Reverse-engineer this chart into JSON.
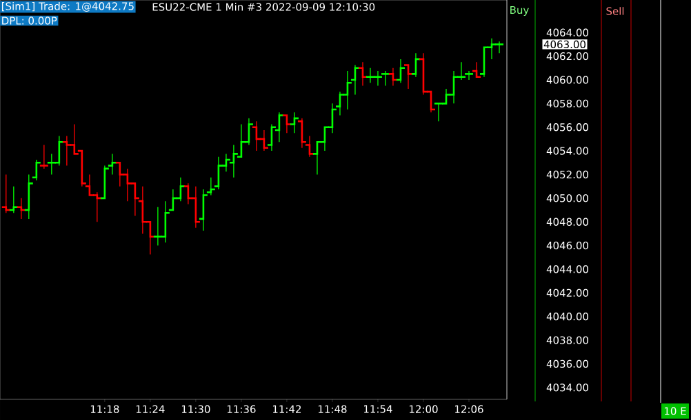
{
  "chart_data": {
    "type": "candlestick",
    "title": "ESU22-CME 1 Min #3 2022-09-09 12:10:30",
    "annotations": [
      "[Sim1] Trade: 1@4042.75",
      "DPL: 0.00P",
      "Buy",
      "Sell",
      "10 E",
      "4063.00"
    ],
    "x": [
      11.0833,
      11.1,
      11.1167,
      11.1333,
      11.15,
      11.1667,
      11.1833,
      11.2,
      11.2167,
      11.2333,
      11.25,
      11.2667,
      11.2833,
      11.3,
      11.3167,
      11.3333,
      11.35,
      11.3667,
      11.3833,
      11.4,
      11.4167,
      11.4333,
      11.45,
      11.4667,
      11.4833,
      11.5,
      11.5167,
      11.5333,
      11.55,
      11.5667,
      11.5833,
      11.6,
      11.6167,
      11.6333,
      11.65,
      11.6667,
      11.6833,
      11.7,
      11.7167,
      11.7333,
      11.75,
      11.7667,
      11.7833,
      11.8,
      11.8167,
      11.8333,
      11.85,
      11.8667,
      11.8833,
      11.9,
      11.9167,
      11.9333,
      11.95,
      11.9667,
      11.9833,
      12.0,
      12.0167,
      12.0333,
      12.05,
      12.0667,
      12.0833,
      12.1,
      12.1167,
      12.1333,
      12.15,
      12.1667
    ],
    "ohlc": [
      [
        4049.25,
        4052.0,
        4048.75,
        4049.0
      ],
      [
        4049.0,
        4051.0,
        4048.75,
        4049.25
      ],
      [
        4049.25,
        4050.0,
        4048.25,
        4049.0
      ],
      [
        4049.0,
        4052.0,
        4048.25,
        4051.25
      ],
      [
        4051.75,
        4053.25,
        4051.5,
        4053.0
      ],
      [
        4052.75,
        4054.5,
        4052.5,
        4052.75
      ],
      [
        4053.0,
        4053.75,
        4052.0,
        4053.0
      ],
      [
        4053.0,
        4055.25,
        4052.75,
        4054.75
      ],
      [
        4054.75,
        4055.25,
        4052.75,
        4054.5
      ],
      [
        4054.5,
        4056.25,
        4053.75,
        4053.75
      ],
      [
        4054.0,
        4054.0,
        4051.0,
        4051.25
      ],
      [
        4051.0,
        4052.0,
        4050.25,
        4050.25
      ],
      [
        4050.25,
        4050.5,
        4048.0,
        4050.0
      ],
      [
        4050.0,
        4052.75,
        4050.0,
        4052.5
      ],
      [
        4052.75,
        4053.75,
        4052.0,
        4053.0
      ],
      [
        4053.0,
        4053.0,
        4051.0,
        4052.0
      ],
      [
        4052.0,
        4052.5,
        4049.75,
        4051.25
      ],
      [
        4051.25,
        4051.25,
        4048.5,
        4050.0
      ],
      [
        4049.75,
        4051.0,
        4047.0,
        4048.0
      ],
      [
        4048.0,
        4048.0,
        4045.25,
        4046.75
      ],
      [
        4046.75,
        4049.25,
        4046.0,
        4046.75
      ],
      [
        4046.75,
        4049.75,
        4046.25,
        4048.75
      ],
      [
        4049.0,
        4050.75,
        4049.0,
        4050.0
      ],
      [
        4050.0,
        4051.75,
        4049.75,
        4051.0
      ],
      [
        4051.0,
        4051.25,
        4049.5,
        4050.0
      ],
      [
        4050.0,
        4051.0,
        4047.5,
        4048.0
      ],
      [
        4048.25,
        4050.75,
        4047.25,
        4050.25
      ],
      [
        4050.5,
        4051.75,
        4050.25,
        4050.75
      ],
      [
        4051.0,
        4053.5,
        4050.75,
        4052.75
      ],
      [
        4052.75,
        4053.75,
        4052.25,
        4053.25
      ],
      [
        4053.0,
        4054.5,
        4051.75,
        4053.75
      ],
      [
        4053.5,
        4056.25,
        4053.5,
        4054.75
      ],
      [
        4054.75,
        4056.75,
        4054.5,
        4056.25
      ],
      [
        4056.0,
        4056.5,
        4054.0,
        4055.0
      ],
      [
        4055.0,
        4055.75,
        4054.0,
        4054.25
      ],
      [
        4054.5,
        4056.25,
        4054.0,
        4056.0
      ],
      [
        4055.75,
        4057.25,
        4054.75,
        4057.0
      ],
      [
        4057.0,
        4057.0,
        4055.5,
        4056.25
      ],
      [
        4056.25,
        4057.25,
        4055.5,
        4056.75
      ],
      [
        4056.5,
        4056.75,
        4054.25,
        4054.75
      ],
      [
        4054.5,
        4055.25,
        4053.5,
        4053.75
      ],
      [
        4053.75,
        4054.75,
        4052.0,
        4054.75
      ],
      [
        4054.75,
        4056.0,
        4054.0,
        4056.0
      ],
      [
        4056.0,
        4058.0,
        4055.5,
        4057.5
      ],
      [
        4057.75,
        4059.0,
        4057.0,
        4058.75
      ],
      [
        4058.75,
        4060.75,
        4057.5,
        4059.75
      ],
      [
        4060.0,
        4061.25,
        4058.75,
        4061.0
      ],
      [
        4061.0,
        4061.5,
        4059.5,
        4060.25
      ],
      [
        4060.25,
        4061.0,
        4059.75,
        4060.25
      ],
      [
        4060.25,
        4060.75,
        4059.5,
        4060.25
      ],
      [
        4060.5,
        4060.75,
        4059.5,
        4060.5
      ],
      [
        4060.5,
        4061.0,
        4059.5,
        4060.0
      ],
      [
        4060.0,
        4061.75,
        4059.75,
        4061.0
      ],
      [
        4061.25,
        4061.25,
        4059.25,
        4060.5
      ],
      [
        4060.5,
        4062.25,
        4060.25,
        4061.75
      ],
      [
        4061.75,
        4062.25,
        4058.75,
        4059.0
      ],
      [
        4059.0,
        4059.0,
        4057.25,
        4057.5
      ],
      [
        4058.0,
        4058.0,
        4056.5,
        4058.0
      ],
      [
        4058.0,
        4059.25,
        4058.0,
        4058.75
      ],
      [
        4058.75,
        4060.75,
        4058.0,
        4060.25
      ],
      [
        4060.25,
        4061.5,
        4060.0,
        4060.25
      ],
      [
        4060.5,
        4060.75,
        4060.0,
        4060.5
      ],
      [
        4060.75,
        4061.5,
        4060.25,
        4060.25
      ],
      [
        4060.5,
        4062.75,
        4060.25,
        4062.75
      ],
      [
        4062.75,
        4063.5,
        4061.75,
        4063.0
      ],
      [
        4063.0,
        4063.25,
        4062.25,
        4063.0
      ]
    ],
    "colors": [
      "#ff0000",
      "#00ff00",
      "#ff0000",
      "#00ff00",
      "#00ff00",
      "#ff0000",
      "#00ff00",
      "#00ff00",
      "#ff0000",
      "#ff0000",
      "#ff0000",
      "#ff0000",
      "#ff0000",
      "#00ff00",
      "#00ff00",
      "#ff0000",
      "#ff0000",
      "#ff0000",
      "#ff0000",
      "#ff0000",
      "#00ff00",
      "#00ff00",
      "#00ff00",
      "#00ff00",
      "#ff0000",
      "#ff0000",
      "#00ff00",
      "#00ff00",
      "#00ff00",
      "#00ff00",
      "#00ff00",
      "#00ff00",
      "#00ff00",
      "#ff0000",
      "#ff0000",
      "#00ff00",
      "#00ff00",
      "#ff0000",
      "#00ff00",
      "#ff0000",
      "#ff0000",
      "#00ff00",
      "#00ff00",
      "#00ff00",
      "#00ff00",
      "#00ff00",
      "#00ff00",
      "#ff0000",
      "#00ff00",
      "#00ff00",
      "#00ff00",
      "#ff0000",
      "#00ff00",
      "#ff0000",
      "#00ff00",
      "#ff0000",
      "#ff0000",
      "#00ff00",
      "#00ff00",
      "#00ff00",
      "#00ff00",
      "#00ff00",
      "#ff0000",
      "#00ff00",
      "#00ff00",
      "#00ff00"
    ],
    "xlim": [
      11.07,
      12.1833
    ],
    "ylim": [
      4033,
      4066.75
    ],
    "xticks": [
      {
        "value": 11.3,
        "label": "11:18"
      },
      {
        "value": 11.4,
        "label": "11:24"
      },
      {
        "value": 11.5,
        "label": "11:30"
      },
      {
        "value": 11.6,
        "label": "11:36"
      },
      {
        "value": 11.7,
        "label": "11:42"
      },
      {
        "value": 11.8,
        "label": "11:48"
      },
      {
        "value": 11.9,
        "label": "11:54"
      },
      {
        "value": 12.0,
        "label": "12:00"
      },
      {
        "value": 12.1,
        "label": "12:06"
      }
    ],
    "yticks": [
      {
        "value": 4034,
        "label": "4034.00"
      },
      {
        "value": 4036,
        "label": "4036.00"
      },
      {
        "value": 4038,
        "label": "4038.00"
      },
      {
        "value": 4040,
        "label": "4040.00"
      },
      {
        "value": 4042,
        "label": "4042.00"
      },
      {
        "value": 4044,
        "label": "4044.00"
      },
      {
        "value": 4046,
        "label": "4046.00"
      },
      {
        "value": 4048,
        "label": "4048.00"
      },
      {
        "value": 4050,
        "label": "4050.00"
      },
      {
        "value": 4052,
        "label": "4052.00"
      },
      {
        "value": 4054,
        "label": "4054.00"
      },
      {
        "value": 4056,
        "label": "4056.00"
      },
      {
        "value": 4058,
        "label": "4058.00"
      },
      {
        "value": 4060,
        "label": "4060.00"
      },
      {
        "value": 4062,
        "label": "4062.00"
      },
      {
        "value": 4064,
        "label": "4064.00"
      }
    ]
  }
}
